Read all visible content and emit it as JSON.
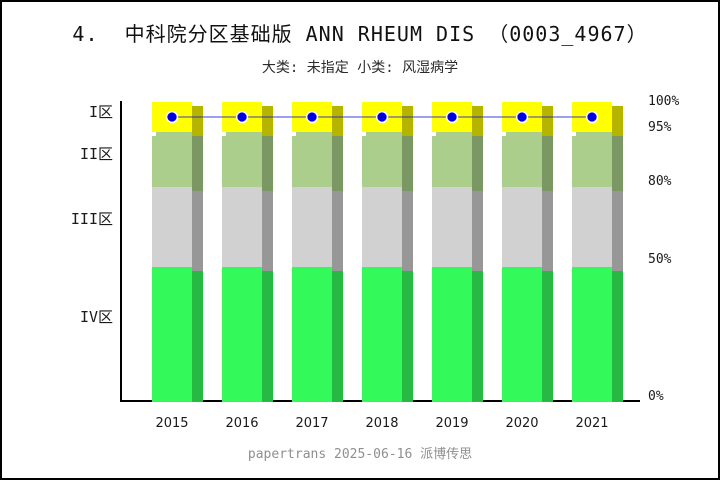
{
  "header": {
    "title": "4.  中科院分区基础版 ANN RHEUM DIS （0003_4967）",
    "subtitle": "大类: 未指定 小类: 风湿病学"
  },
  "footer": {
    "text": "papertrans 2025-06-16 派博传思"
  },
  "chart_data": {
    "type": "bar",
    "subtype": "stacked-zone-bands-with-marker-line",
    "title": "4.  中科院分区基础版 ANN RHEUM DIS （0003_4967）",
    "subtitle": "大类: 未指定 小类: 风湿病学",
    "categories": [
      "2015",
      "2016",
      "2017",
      "2018",
      "2019",
      "2020",
      "2021"
    ],
    "zones": [
      {
        "key": "zone-1",
        "label": "I区",
        "range_pct": [
          95,
          100
        ],
        "color": "#FFFF00",
        "shadow_color": "#B5B500"
      },
      {
        "key": "zone-2",
        "label": "II区",
        "range_pct": [
          80,
          95
        ],
        "color": "#ABCE8D",
        "shadow_color": "#7B9763"
      },
      {
        "key": "zone-3",
        "label": "III区",
        "range_pct": [
          50,
          80
        ],
        "color": "#D1D1D1",
        "shadow_color": "#979797"
      },
      {
        "key": "zone-4",
        "label": "IV区",
        "range_pct": [
          0,
          50
        ],
        "color": "#33FA5A",
        "shadow_color": "#28B944"
      }
    ],
    "right_axis_ticks": [
      "100%",
      "95%",
      "80%",
      "50%",
      "0%"
    ],
    "series": [
      {
        "name": "journal-zone-by-year",
        "values": [
          "I区",
          "I区",
          "I区",
          "I区",
          "I区",
          "I区",
          "I区"
        ],
        "marker_color": "#0000DE",
        "marker_edge_color": "#FFFFFF",
        "line_color": "rgba(25,25,215,0.42)"
      }
    ],
    "legend": null,
    "grid": false,
    "xlabel": "",
    "ylabel": ""
  }
}
